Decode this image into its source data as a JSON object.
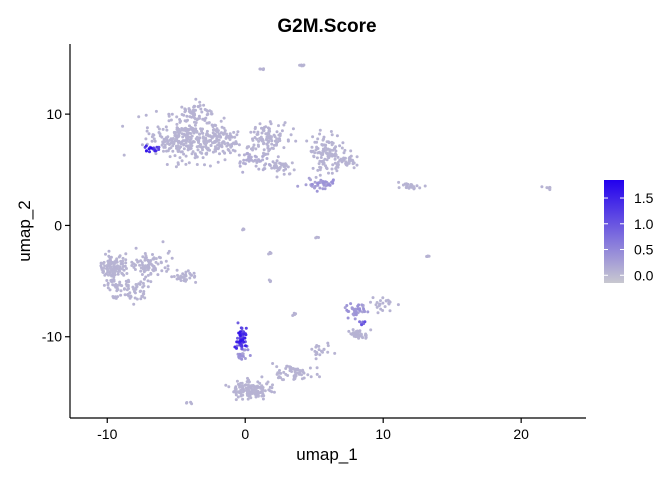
{
  "chart_data": {
    "type": "scatter",
    "title": "G2M.Score",
    "xlabel": "umap_1",
    "ylabel": "umap_2",
    "xlim": [
      -12.7,
      24.7
    ],
    "ylim": [
      -17.3,
      16.3
    ],
    "x_ticks": [
      -10,
      0,
      10,
      20
    ],
    "y_ticks": [
      -10,
      0,
      10
    ],
    "grid": false,
    "legend": {
      "position": "right",
      "type": "colorbar",
      "min": -0.15,
      "max": 1.85,
      "ticks": [
        0.0,
        0.5,
        1.0,
        1.5
      ],
      "tick_labels": [
        "0.0",
        "0.5",
        "1.0",
        "1.5"
      ],
      "color_low": "#c8c8d0",
      "color_high": "#2200ee"
    },
    "clusters": [
      {
        "cx": -4.5,
        "cy": 7.8,
        "sx": 2.1,
        "sy": 1.6,
        "n": 260,
        "score": 0.05
      },
      {
        "cx": -2.0,
        "cy": 7.5,
        "sx": 1.5,
        "sy": 1.2,
        "n": 120,
        "score": 0.05
      },
      {
        "cx": -3.8,
        "cy": 10.2,
        "sx": 1.4,
        "sy": 0.6,
        "n": 60,
        "score": 0.05
      },
      {
        "cx": 1.5,
        "cy": 7.8,
        "sx": 1.3,
        "sy": 1.3,
        "n": 110,
        "score": 0.05
      },
      {
        "cx": 0.5,
        "cy": 6.0,
        "sx": 1.0,
        "sy": 0.6,
        "n": 40,
        "score": 0.1
      },
      {
        "cx": 2.5,
        "cy": 5.2,
        "sx": 1.0,
        "sy": 0.5,
        "n": 40,
        "score": 0.05
      },
      {
        "cx": -6.8,
        "cy": 6.9,
        "sx": 0.5,
        "sy": 0.25,
        "n": 18,
        "score": 1.3
      },
      {
        "cx": 5.8,
        "cy": 6.5,
        "sx": 1.0,
        "sy": 1.5,
        "n": 100,
        "score": 0.05
      },
      {
        "cx": 7.2,
        "cy": 5.8,
        "sx": 0.7,
        "sy": 0.6,
        "n": 50,
        "score": 0.05
      },
      {
        "cx": 5.5,
        "cy": 3.7,
        "sx": 0.9,
        "sy": 0.4,
        "n": 40,
        "score": 0.3
      },
      {
        "cx": 12.0,
        "cy": 3.5,
        "sx": 0.7,
        "sy": 0.25,
        "n": 26,
        "score": 0.05
      },
      {
        "cx": 22.0,
        "cy": 3.4,
        "sx": 0.25,
        "sy": 0.15,
        "n": 6,
        "score": 0.05
      },
      {
        "cx": -9.6,
        "cy": -3.8,
        "sx": 0.8,
        "sy": 0.9,
        "n": 110,
        "score": 0.05
      },
      {
        "cx": -7.0,
        "cy": -3.5,
        "sx": 1.3,
        "sy": 1.0,
        "n": 100,
        "score": 0.05
      },
      {
        "cx": -8.5,
        "cy": -5.8,
        "sx": 1.3,
        "sy": 0.8,
        "n": 80,
        "score": 0.05
      },
      {
        "cx": -4.5,
        "cy": -4.6,
        "sx": 0.9,
        "sy": 0.4,
        "n": 30,
        "score": 0.05
      },
      {
        "cx": -0.3,
        "cy": -10.3,
        "sx": 0.25,
        "sy": 0.9,
        "n": 60,
        "score": 1.2
      },
      {
        "cx": -0.2,
        "cy": -11.7,
        "sx": 0.3,
        "sy": 0.5,
        "n": 20,
        "score": 0.3
      },
      {
        "cx": 0.5,
        "cy": -14.8,
        "sx": 1.2,
        "sy": 0.7,
        "n": 140,
        "score": 0.05
      },
      {
        "cx": 3.5,
        "cy": -13.3,
        "sx": 1.2,
        "sy": 0.7,
        "n": 60,
        "score": 0.05
      },
      {
        "cx": 5.5,
        "cy": -11.2,
        "sx": 0.6,
        "sy": 0.6,
        "n": 20,
        "score": 0.05
      },
      {
        "cx": 8.2,
        "cy": -9.8,
        "sx": 0.6,
        "sy": 0.4,
        "n": 45,
        "score": 0.05
      },
      {
        "cx": 8.0,
        "cy": -7.6,
        "sx": 0.6,
        "sy": 0.5,
        "n": 40,
        "score": 0.3
      },
      {
        "cx": 10.0,
        "cy": -7.0,
        "sx": 0.8,
        "sy": 0.5,
        "n": 25,
        "score": 0.05
      },
      {
        "cx": 8.5,
        "cy": -8.8,
        "sx": 0.2,
        "sy": 0.2,
        "n": 6,
        "score": 0.8
      },
      {
        "cx": 1.2,
        "cy": 14.1,
        "sx": 0.15,
        "sy": 0.1,
        "n": 5,
        "score": 0.05
      },
      {
        "cx": 4.1,
        "cy": 14.4,
        "sx": 0.2,
        "sy": 0.1,
        "n": 6,
        "score": 0.05
      },
      {
        "cx": -0.2,
        "cy": -0.4,
        "sx": 0.1,
        "sy": 0.1,
        "n": 3,
        "score": 0.05
      },
      {
        "cx": 5.2,
        "cy": -1.1,
        "sx": 0.1,
        "sy": 0.1,
        "n": 3,
        "score": 0.05
      },
      {
        "cx": 1.7,
        "cy": -2.5,
        "sx": 0.15,
        "sy": 0.15,
        "n": 4,
        "score": 0.05
      },
      {
        "cx": 13.3,
        "cy": -2.8,
        "sx": 0.15,
        "sy": 0.2,
        "n": 4,
        "score": 0.05
      },
      {
        "cx": -4.0,
        "cy": -15.9,
        "sx": 0.2,
        "sy": 0.1,
        "n": 4,
        "score": 0.05
      },
      {
        "cx": 3.5,
        "cy": -8.0,
        "sx": 0.2,
        "sy": 0.1,
        "n": 4,
        "score": 0.05
      },
      {
        "cx": 1.8,
        "cy": -5.0,
        "sx": 0.1,
        "sy": 0.1,
        "n": 3,
        "score": 0.05
      }
    ]
  }
}
